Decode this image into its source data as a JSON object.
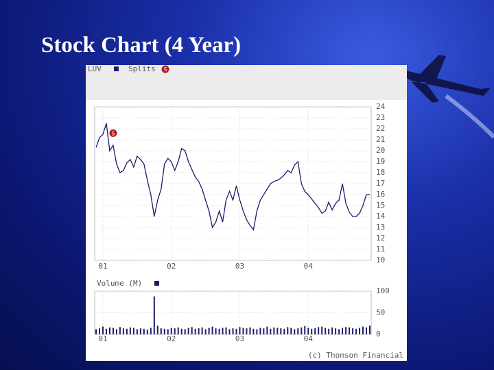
{
  "title": "Stock Chart (4 Year)",
  "footer": "(c) Thomson Financial",
  "chart_data": [
    {
      "type": "line",
      "categories": [
        null,
        null,
        "01",
        null,
        null,
        null,
        null,
        null,
        null,
        null,
        null,
        null,
        null,
        null,
        null,
        null,
        null,
        null,
        null,
        null,
        null,
        null,
        "02",
        null,
        null,
        null,
        null,
        null,
        null,
        null,
        null,
        null,
        null,
        null,
        null,
        null,
        null,
        null,
        null,
        null,
        null,
        null,
        "03",
        null,
        null,
        null,
        null,
        null,
        null,
        null,
        null,
        null,
        null,
        null,
        null,
        null,
        null,
        null,
        null,
        null,
        null,
        null,
        "04",
        null,
        null,
        null,
        null,
        null,
        null,
        null,
        null,
        null,
        null,
        null,
        null,
        null,
        null,
        null,
        null,
        null,
        null
      ],
      "series": [
        {
          "name": "LUV",
          "color": "#1c1c6b",
          "values": [
            20.3,
            21.2,
            21.5,
            22.5,
            20.0,
            20.5,
            18.8,
            18.0,
            18.2,
            18.9,
            19.2,
            18.5,
            19.5,
            19.2,
            18.8,
            17.3,
            16.0,
            14.0,
            15.5,
            16.5,
            18.8,
            19.3,
            19.0,
            18.2,
            19.0,
            20.2,
            20.0,
            19.0,
            18.3,
            17.6,
            17.2,
            16.5,
            15.5,
            14.5,
            13.0,
            13.5,
            14.5,
            13.5,
            15.5,
            16.3,
            15.5,
            16.8,
            15.5,
            14.5,
            13.7,
            13.2,
            12.8,
            14.5,
            15.5,
            16.0,
            16.5,
            17.0,
            17.2,
            17.3,
            17.5,
            17.8,
            18.2,
            18.0,
            18.7,
            19.0,
            17.0,
            16.3,
            16.0,
            15.6,
            15.2,
            14.8,
            14.3,
            14.5,
            15.3,
            14.6,
            15.2,
            15.5,
            17.0,
            15.2,
            14.4,
            14.0,
            14.0,
            14.3,
            15.0,
            16.0,
            16.0
          ]
        },
        {
          "name": "Splits",
          "color": "#b01e1e",
          "marker": "S",
          "values": [
            null,
            null,
            null,
            null,
            null,
            21.6,
            null,
            null,
            null,
            null,
            null,
            null,
            null,
            null,
            null,
            null,
            null,
            null,
            null,
            null,
            null,
            null,
            null,
            null,
            null,
            null,
            null,
            null,
            null,
            null,
            null,
            null,
            null,
            null,
            null,
            null,
            null,
            null,
            null,
            null,
            null,
            null,
            null,
            null,
            null,
            null,
            null,
            null,
            null,
            null,
            null,
            null,
            null,
            null,
            null,
            null,
            null,
            null,
            null,
            null,
            null,
            null,
            null,
            null,
            null,
            null,
            null,
            null,
            null,
            null,
            null,
            null,
            null,
            null,
            null,
            null,
            null,
            null,
            null,
            null,
            null
          ]
        }
      ],
      "ylim": [
        10,
        24
      ],
      "yticks": [
        10,
        11,
        12,
        13,
        14,
        15,
        16,
        17,
        18,
        19,
        20,
        21,
        22,
        23,
        24
      ],
      "grid": true
    },
    {
      "type": "bar",
      "categories": [
        null,
        null,
        "01",
        null,
        null,
        null,
        null,
        null,
        null,
        null,
        null,
        null,
        null,
        null,
        null,
        null,
        null,
        null,
        null,
        null,
        null,
        null,
        "02",
        null,
        null,
        null,
        null,
        null,
        null,
        null,
        null,
        null,
        null,
        null,
        null,
        null,
        null,
        null,
        null,
        null,
        null,
        null,
        "03",
        null,
        null,
        null,
        null,
        null,
        null,
        null,
        null,
        null,
        null,
        null,
        null,
        null,
        null,
        null,
        null,
        null,
        null,
        null,
        "04",
        null,
        null,
        null,
        null,
        null,
        null,
        null,
        null,
        null,
        null,
        null,
        null,
        null,
        null,
        null,
        null,
        null,
        null
      ],
      "series": [
        {
          "name": "Volume (M)",
          "color": "#1c1c6b",
          "values": [
            12,
            14,
            18,
            13,
            16,
            15,
            12,
            17,
            14,
            13,
            16,
            15,
            12,
            14,
            13,
            11,
            15,
            88,
            20,
            14,
            13,
            12,
            15,
            14,
            16,
            13,
            12,
            15,
            17,
            13,
            14,
            16,
            12,
            15,
            18,
            14,
            13,
            15,
            16,
            12,
            14,
            13,
            17,
            15,
            14,
            16,
            13,
            12,
            15,
            14,
            18,
            13,
            16,
            15,
            14,
            13,
            17,
            15,
            12,
            14,
            16,
            19,
            15,
            13,
            14,
            17,
            18,
            15,
            13,
            16,
            14,
            12,
            15,
            17,
            16,
            14,
            13,
            15,
            18,
            16,
            20
          ]
        }
      ],
      "ylim": [
        0,
        100
      ],
      "yticks": [
        0,
        50,
        100
      ],
      "grid": true
    }
  ]
}
